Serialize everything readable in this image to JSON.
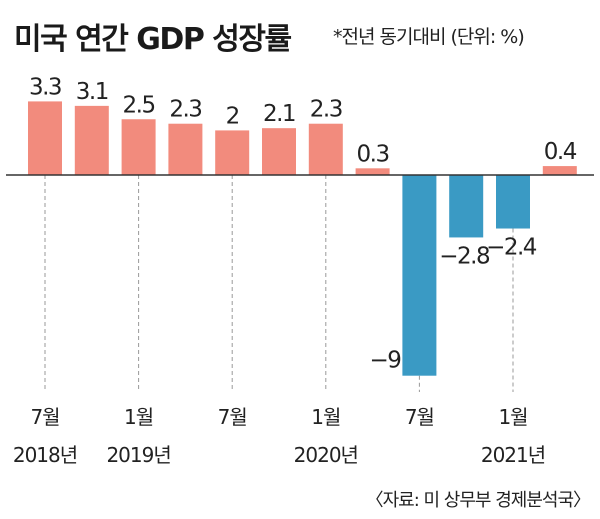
{
  "title": "미국 연간 GDP 성장률",
  "note": "*전년 동기대비 (단위: %)",
  "source": "〈자료: 미 상무부 경제분석국〉",
  "chart_data": {
    "type": "bar",
    "categories": [
      "2018Q3",
      "2018Q4",
      "2019Q1",
      "2019Q2",
      "2019Q3",
      "2019Q4",
      "2020Q1",
      "2020Q2",
      "2020Q3",
      "2020Q4",
      "2021Q1",
      "2021Q2"
    ],
    "values": [
      3.3,
      3.1,
      2.5,
      2.3,
      2,
      2.1,
      2.3,
      0.3,
      -9,
      -2.8,
      -2.4,
      0.4
    ],
    "value_labels": [
      "3.3",
      "3.1",
      "2.5",
      "2.3",
      "2",
      "2.1",
      "2.3",
      "0.3",
      "−9",
      "−2.8",
      "−2.4",
      "0.4"
    ],
    "x_ticks": [
      {
        "index": 0,
        "month": "7월",
        "year": "2018년"
      },
      {
        "index": 2,
        "month": "1월",
        "year": "2019년"
      },
      {
        "index": 4,
        "month": "7월",
        "year": ""
      },
      {
        "index": 6,
        "month": "1월",
        "year": "2020년"
      },
      {
        "index": 8,
        "month": "7월",
        "year": ""
      },
      {
        "index": 10,
        "month": "1월",
        "year": "2021년"
      }
    ],
    "colors": {
      "positive": "#f28b7d",
      "negative": "#3a9ac4"
    },
    "grid": false,
    "legend": "none"
  }
}
